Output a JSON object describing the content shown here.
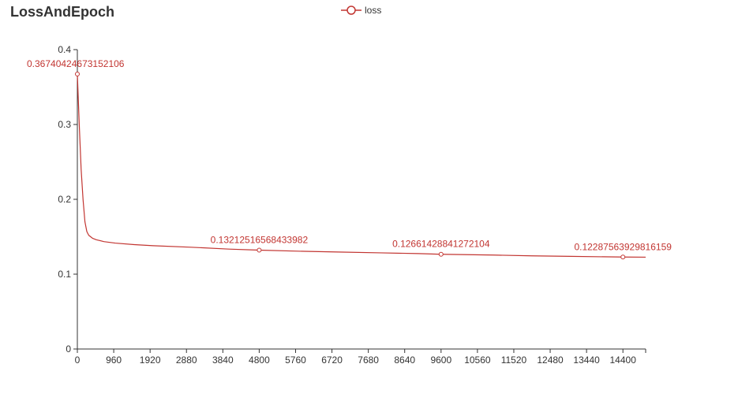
{
  "chart_data": {
    "type": "line",
    "title": "LossAndEpoch",
    "legend": {
      "entries": [
        "loss"
      ],
      "placement": "top-center"
    },
    "series_color": "#c23531",
    "xlim": [
      0,
      15000
    ],
    "ylim": [
      0,
      0.4
    ],
    "x_ticks": [
      "0",
      "960",
      "1920",
      "2880",
      "3840",
      "4800",
      "5760",
      "6720",
      "7680",
      "8640",
      "9600",
      "10560",
      "11520",
      "12480",
      "13440",
      "14400"
    ],
    "y_ticks": [
      "0",
      "0.1",
      "0.2",
      "0.3",
      "0.4"
    ],
    "grid": false,
    "series": [
      {
        "name": "loss",
        "x": [
          0,
          50,
          100,
          150,
          200,
          250,
          300,
          400,
          500,
          700,
          1000,
          1500,
          2000,
          3000,
          4000,
          4800,
          6000,
          7000,
          8000,
          9000,
          9600,
          11000,
          12000,
          13000,
          14400,
          15000
        ],
        "y": [
          0.3674,
          0.3,
          0.24,
          0.2,
          0.17,
          0.157,
          0.152,
          0.148,
          0.146,
          0.1435,
          0.1415,
          0.1395,
          0.138,
          0.136,
          0.1335,
          0.13213,
          0.1305,
          0.1295,
          0.1285,
          0.1275,
          0.12661,
          0.1255,
          0.1245,
          0.1238,
          0.12288,
          0.1227
        ]
      }
    ],
    "labeled_points": [
      {
        "x": 0,
        "y": 0.36740424673152106,
        "label": "0.36740424673152106"
      },
      {
        "x": 4800,
        "y": 0.13212516568433982,
        "label": "0.13212516568433982"
      },
      {
        "x": 9600,
        "y": 0.12661428841272104,
        "label": "0.12661428841272104"
      },
      {
        "x": 14400,
        "y": 0.12287563929816159,
        "label": "0.12287563929816159"
      }
    ]
  }
}
